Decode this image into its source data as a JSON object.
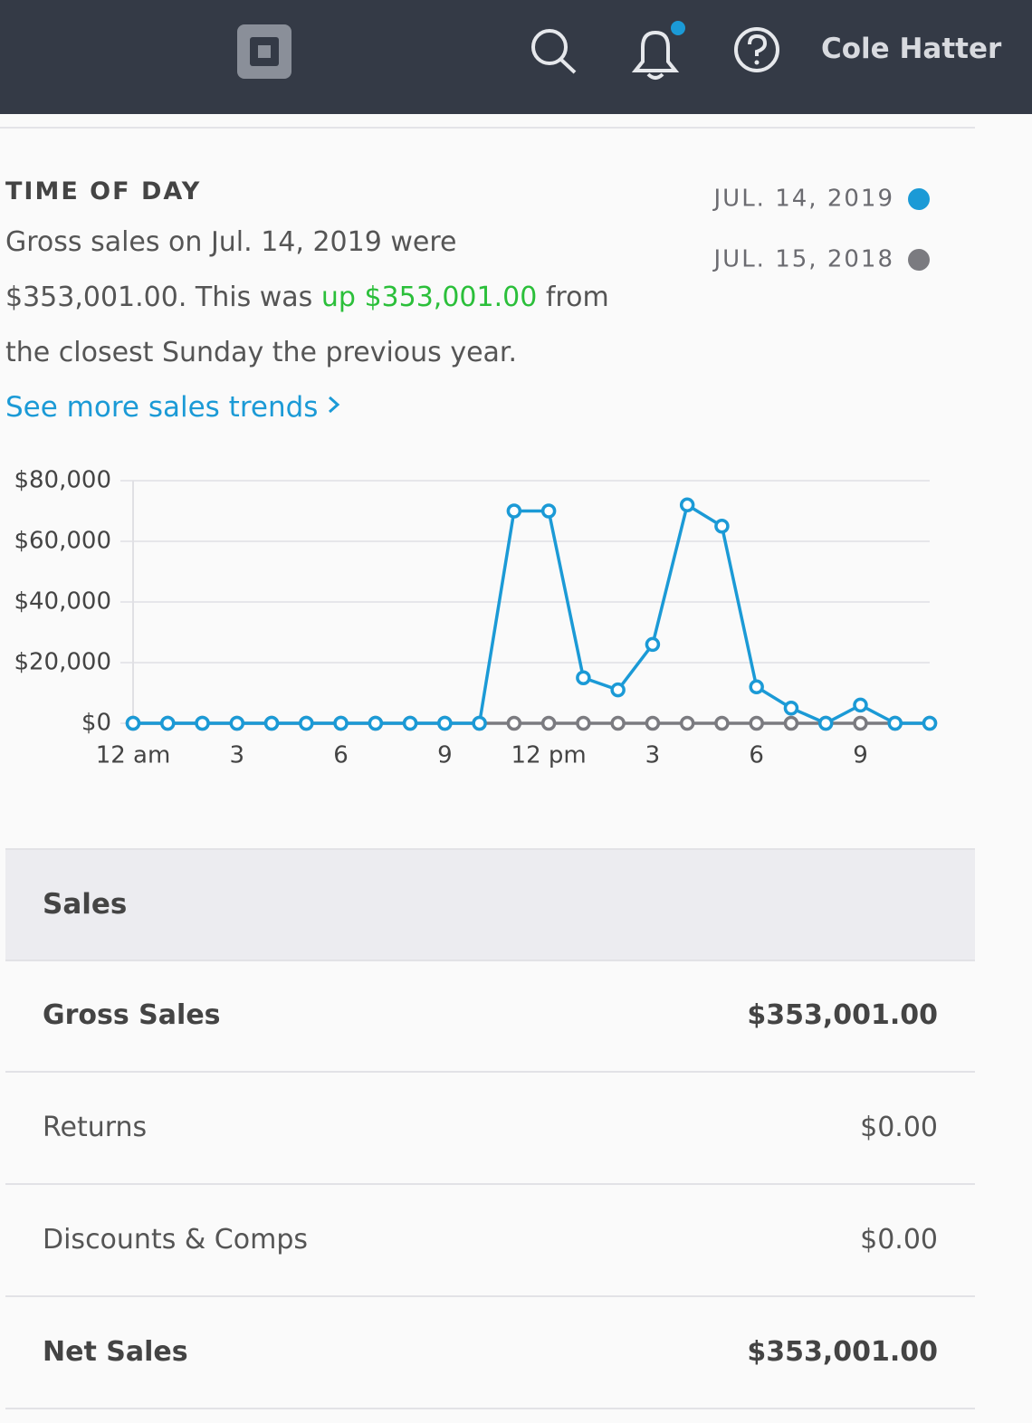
{
  "header": {
    "user_name": "Cole Hatter"
  },
  "section": {
    "title": "TIME OF DAY",
    "summary": [
      "Gross sales on Jul. 14, 2019 were",
      "$353,001.00. This was ",
      "up $353,001.00",
      " from",
      "the closest Sunday the previous year."
    ],
    "link": "See more sales trends"
  },
  "chart_data": {
    "type": "line",
    "x": [
      0,
      1,
      2,
      3,
      4,
      5,
      6,
      7,
      8,
      9,
      10,
      11,
      12,
      13,
      14,
      15,
      16,
      17,
      18,
      19,
      20,
      21,
      22,
      23
    ],
    "xlim": [
      0,
      23
    ],
    "xticks": [
      {
        "value": 0,
        "label": "12 am"
      },
      3,
      6,
      9,
      {
        "value": 12,
        "label": "12 pm"
      },
      {
        "value": 15,
        "label": "3"
      },
      {
        "value": 18,
        "label": "6"
      },
      {
        "value": 21,
        "label": "9"
      }
    ],
    "ylim": [
      0,
      80000
    ],
    "yticks": [
      {
        "value": 0,
        "label": "$0"
      },
      {
        "value": 20000,
        "label": "$20,000"
      },
      {
        "value": 40000,
        "label": "$40,000"
      },
      {
        "value": 60000,
        "label": "$60,000"
      },
      {
        "value": 80000,
        "label": "$80,000"
      }
    ],
    "grid": true,
    "series": [
      {
        "name": "JUL. 14, 2019",
        "color": "#1b9ad6",
        "values": [
          0,
          0,
          0,
          0,
          0,
          0,
          0,
          0,
          0,
          0,
          0,
          70000,
          70000,
          15000,
          11000,
          26000,
          72000,
          65000,
          12000,
          5000,
          0,
          6000,
          0,
          0
        ]
      },
      {
        "name": "JUL. 15, 2018",
        "color": "#7b7b80",
        "values": [
          0,
          0,
          0,
          0,
          0,
          0,
          0,
          0,
          0,
          0,
          0,
          0,
          0,
          0,
          0,
          0,
          0,
          0,
          0,
          0,
          0,
          0,
          0,
          0
        ]
      }
    ]
  },
  "table": {
    "header": "Sales",
    "rows": [
      [
        "Gross Sales",
        "$353,001.00"
      ],
      [
        "Returns",
        "$0.00"
      ],
      [
        "Discounts & Comps",
        "$0.00"
      ],
      [
        "Net Sales",
        "$353,001.00"
      ]
    ]
  }
}
